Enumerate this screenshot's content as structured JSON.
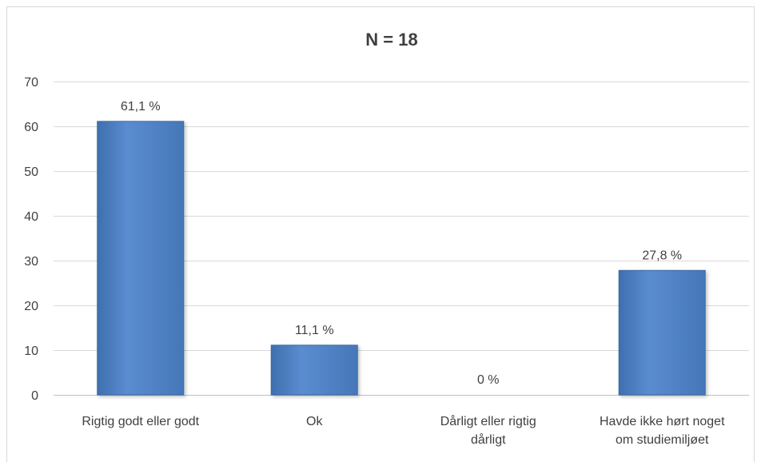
{
  "chart_data": {
    "type": "bar",
    "title": "N = 18",
    "xlabel": "",
    "ylabel": "",
    "categories": [
      [
        "Rigtig godt eller godt"
      ],
      [
        "Ok"
      ],
      [
        "Dårligt eller rigtig",
        "dårligt"
      ],
      [
        "Havde ikke hørt noget",
        "om studiemiljøet"
      ]
    ],
    "values": [
      61.1,
      11.1,
      0,
      27.8
    ],
    "data_labels": [
      "61,1 %",
      "11,1 %",
      "0 %",
      "27,8 %"
    ],
    "yticks": [
      "0",
      "10",
      "20",
      "30",
      "40",
      "50",
      "60",
      "70"
    ],
    "ylim": [
      0,
      70
    ],
    "grid": true,
    "legend": "none",
    "colors": {
      "bar_fill": "#4f81bd",
      "bar_edge": "#3a6aa6",
      "grid": "#d9d9d9",
      "axis": "#bfbfbf",
      "text": "#404040"
    }
  }
}
